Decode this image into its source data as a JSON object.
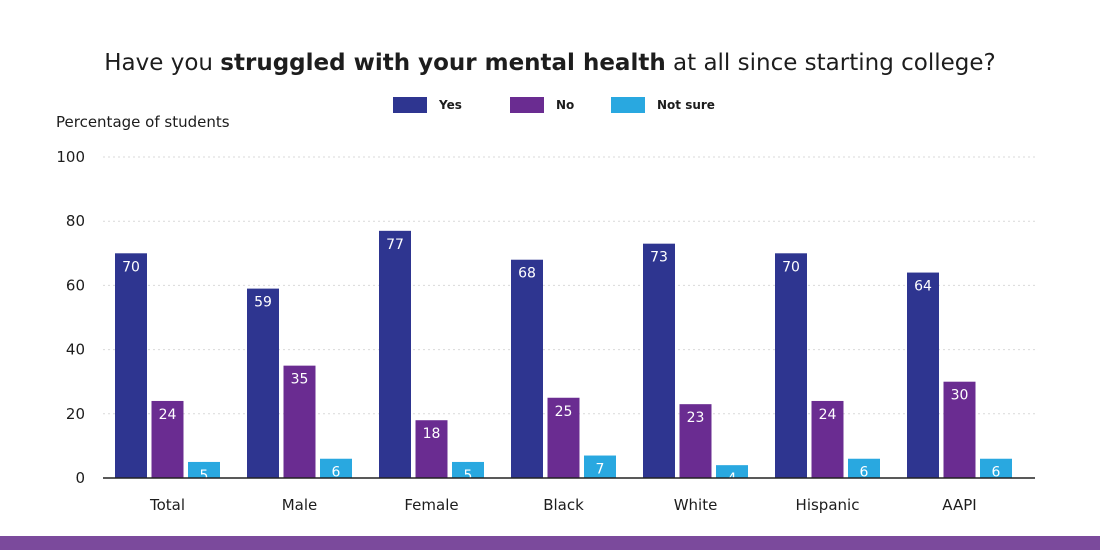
{
  "chart_data": {
    "type": "bar",
    "title": {
      "prefix": "Have you ",
      "bold": "struggled with your mental health",
      "suffix": " at all since starting college?"
    },
    "xlabel": "",
    "ylabel": "Percentage of students",
    "ylim": [
      0,
      100
    ],
    "yticks": [
      0,
      20,
      40,
      60,
      80,
      100
    ],
    "grid": true,
    "legend_position": "top-center",
    "categories": [
      "Total",
      "Male",
      "Female",
      "Black",
      "White",
      "Hispanic",
      "AAPI"
    ],
    "series": [
      {
        "name": "Yes",
        "color": "#2e3590",
        "values": [
          70,
          59,
          77,
          68,
          73,
          70,
          64
        ]
      },
      {
        "name": "No",
        "color": "#6a2c91",
        "values": [
          24,
          35,
          18,
          25,
          23,
          24,
          30
        ]
      },
      {
        "name": "Not sure",
        "color": "#29a8e0",
        "values": [
          5,
          6,
          5,
          7,
          4,
          6,
          6
        ]
      }
    ]
  },
  "colors": {
    "bottom_bar": "#7b4a9c",
    "grid": "#d9d9d9",
    "axis": "#222222"
  }
}
